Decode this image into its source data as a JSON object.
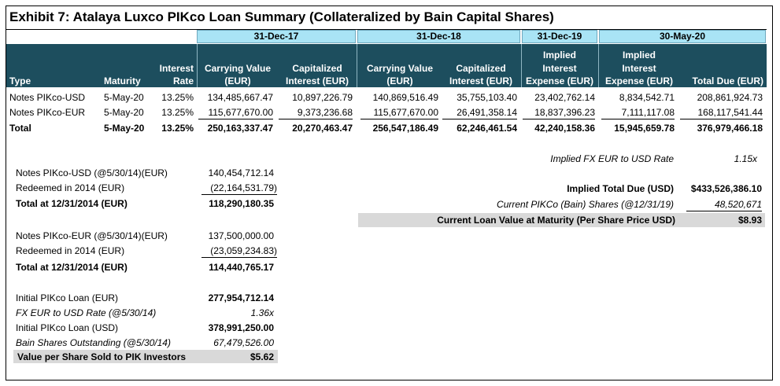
{
  "title": "Exhibit 7: Atalaya Luxco PIKco Loan Summary (Collateralized by Bain Capital Shares)",
  "period_headers": [
    "31-Dec-17",
    "31-Dec-18",
    "31-Dec-19",
    "30-May-20"
  ],
  "columns": {
    "type": "Type",
    "maturity": "Maturity",
    "rate_1": "Interest",
    "rate_2": "Rate",
    "cv17_1": "Carrying Value",
    "cv17_2": "(EUR)",
    "ci17_1": "Capitalized",
    "ci17_2": "Interest (EUR)",
    "cv18_1": "Carrying Value",
    "cv18_2": "(EUR)",
    "ci18_1": "Capitalized",
    "ci18_2": "Interest (EUR)",
    "ie19_1": "Implied",
    "ie19_2": "Interest",
    "ie19_3": "Expense (EUR)",
    "ie20_1": "Implied",
    "ie20_2": "Interest",
    "ie20_3": "Expense (EUR)",
    "total_due": "Total Due (EUR)"
  },
  "rows": [
    {
      "type": "Notes PIKco-USD",
      "maturity": "5-May-20",
      "rate": "13.25%",
      "cv17": "134,485,667.47",
      "ci17": "10,897,226.79",
      "cv18": "140,869,516.49",
      "ci18": "35,755,103.40",
      "ie19": "23,402,762.14",
      "ie20": "8,834,542.71",
      "total": "208,861,924.73"
    },
    {
      "type": "Notes PIKco-EUR",
      "maturity": "5-May-20",
      "rate": "13.25%",
      "cv17": "115,677,670.00",
      "ci17": "9,373,236.68",
      "cv18": "115,677,670.00",
      "ci18": "26,491,358.14",
      "ie19": "18,837,396.23",
      "ie20": "7,111,117.08",
      "total": "168,117,541.44"
    },
    {
      "type": "Total",
      "maturity": "5-May-20",
      "rate": "13.25%",
      "cv17": "250,163,337.47",
      "ci17": "20,270,463.47",
      "cv18": "256,547,186.49",
      "ci18": "62,246,461.54",
      "ie19": "42,240,158.36",
      "ie20": "15,945,659.78",
      "total": "376,979,466.18"
    }
  ],
  "usd_block": {
    "label": "Notes PIKco-USD (@5/30/14)(EUR)",
    "value": "140,454,712.14",
    "redeemed_label": "Redeemed in 2014 (EUR)",
    "redeemed_value": "(22,164,531.79)",
    "total_label": "Total at 12/31/2014 (EUR)",
    "total_value": "118,290,180.35"
  },
  "eur_block": {
    "label": "Notes PIKco-EUR (@5/30/14)(EUR)",
    "value": "137,500,000.00",
    "redeemed_label": "Redeemed in 2014 (EUR)",
    "redeemed_value": "(23,059,234.83)",
    "total_label": "Total at 12/31/2014 (EUR)",
    "total_value": "114,440,765.17"
  },
  "initial_block": {
    "loan_eur_label": "Initial PIKco Loan (EUR)",
    "loan_eur_value": "277,954,712.14",
    "fx_label": "FX EUR to USD Rate (@5/30/14)",
    "fx_value": "1.36x",
    "loan_usd_label": "Initial PIKco Loan (USD)",
    "loan_usd_value": "378,991,250.00",
    "shares_label": "Bain Shares Outstanding (@5/30/14)",
    "shares_value": "67,479,526.00",
    "vps_label": "Value per Share Sold to PIK Investors",
    "vps_value": "$5.62"
  },
  "right_block": {
    "fx_label": "Implied FX EUR to USD Rate",
    "fx_value": "1.15x",
    "due_usd_label": "Implied Total Due (USD)",
    "due_usd_value": "$433,526,386.10",
    "shares_label": "Current PIKCo (Bain) Shares (@12/31/19)",
    "shares_value": "48,520,671",
    "loan_value_label": "Current Loan Value at Maturity (Per Share Price USD)",
    "loan_value_value": "$8.93"
  }
}
